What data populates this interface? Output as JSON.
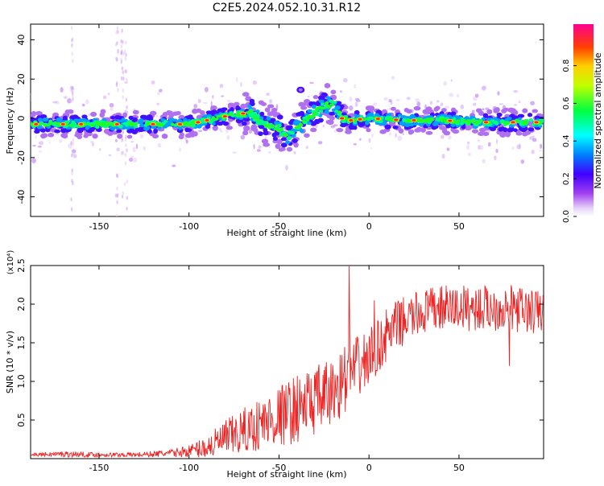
{
  "title": "C2E5.2024.052.10.31.R12",
  "colors": {
    "snr_line": "#ee2222",
    "colormap": [
      "#e8d8f8",
      "#a040f0",
      "#4000ff",
      "#0080ff",
      "#00ffff",
      "#00ff40",
      "#c0ff00",
      "#ffd000",
      "#ff4000",
      "#ff0090"
    ]
  },
  "chart_data": [
    {
      "type": "heatmap",
      "title": "C2E5.2024.052.10.31.R12",
      "xlabel": "Height of straight line (km)",
      "ylabel": "Frequency (Hz)",
      "xlim": [
        -188,
        97
      ],
      "ylim": [
        -50,
        48
      ],
      "x_ticks": [
        -150,
        -100,
        -50,
        0,
        50
      ],
      "y_ticks": [
        -40,
        -20,
        0,
        20,
        40
      ],
      "colorbar": {
        "label": "Normalized spectral amplitude",
        "range": [
          0,
          1
        ],
        "ticks": [
          "0.0",
          "0.2",
          "0.4",
          "0.6",
          "0.8"
        ]
      },
      "ridge": {
        "x": [
          -188,
          -160,
          -130,
          -100,
          -85,
          -75,
          -65,
          -60,
          -55,
          -50,
          -45,
          -40,
          -35,
          -30,
          -25,
          -20,
          -15,
          -10,
          0,
          20,
          40,
          60,
          80,
          97
        ],
        "y": [
          -3,
          -3,
          -3,
          -3,
          0,
          2,
          3,
          -2,
          -4,
          -5,
          -10,
          -5,
          -1,
          3,
          6,
          8,
          0,
          -1,
          0,
          -1,
          -1,
          -2,
          -2,
          -2
        ]
      },
      "hot_spots_x": [
        -185,
        -170,
        -160,
        -140,
        -120,
        -105,
        -95,
        -90,
        -80,
        -70,
        -15,
        -10,
        -5,
        5,
        15,
        25,
        45,
        65,
        80,
        93
      ],
      "grid": false
    },
    {
      "type": "line",
      "xlabel": "Height of straight line (km)",
      "ylabel": "SNR (10 * v/v)",
      "y_multiplier": "(x10⁴)",
      "xlim": [
        -188,
        97
      ],
      "ylim": [
        0,
        2.5
      ],
      "x_ticks": [
        -150,
        -100,
        -50,
        0,
        50
      ],
      "y_ticks": [
        0.5,
        1.0,
        1.5,
        2.0,
        2.5
      ],
      "series": [
        {
          "x": [
            -188,
            -170,
            -150,
            -130,
            -110,
            -100,
            -90,
            -80,
            -70,
            -60,
            -50,
            -40,
            -30,
            -20,
            -15,
            -10,
            -5,
            0,
            5,
            10,
            15,
            20,
            25,
            30,
            40,
            50,
            60,
            70,
            80,
            90,
            97
          ],
          "y": [
            0.05,
            0.06,
            0.05,
            0.05,
            0.07,
            0.1,
            0.15,
            0.25,
            0.35,
            0.45,
            0.55,
            0.65,
            0.75,
            0.85,
            1.0,
            1.1,
            1.2,
            1.3,
            1.45,
            1.6,
            1.7,
            1.8,
            1.85,
            1.9,
            1.95,
            1.95,
            1.95,
            1.95,
            1.95,
            1.9,
            1.9
          ],
          "noise": [
            0.02,
            0.04,
            0.03,
            0.03,
            0.05,
            0.08,
            0.15,
            0.25,
            0.3,
            0.35,
            0.4,
            0.45,
            0.45,
            0.45,
            0.45,
            0.45,
            0.4,
            0.4,
            0.35,
            0.35,
            0.35,
            0.3,
            0.3,
            0.3,
            0.3,
            0.3,
            0.3,
            0.3,
            0.3,
            0.3,
            0.3
          ]
        }
      ],
      "spikes": [
        {
          "x": -11,
          "y": 2.5
        },
        {
          "x": 3,
          "y": 2.05
        },
        {
          "x": 78,
          "y": 1.2
        }
      ],
      "grid": false
    }
  ]
}
